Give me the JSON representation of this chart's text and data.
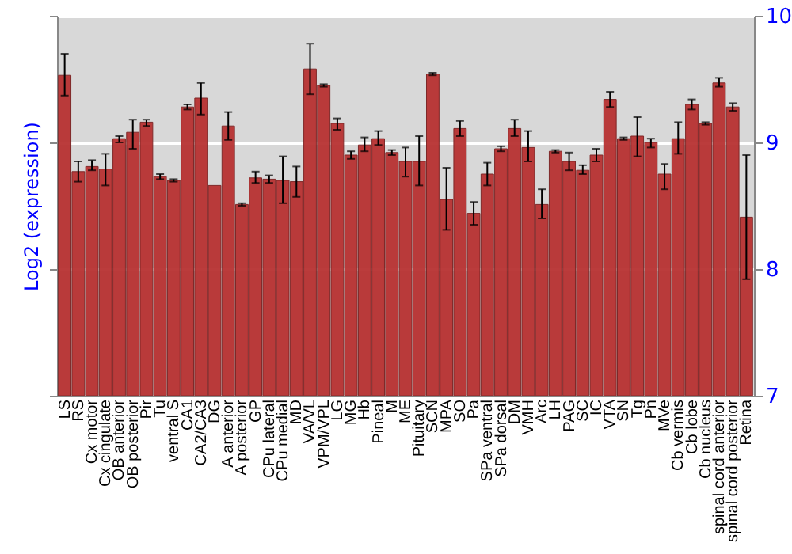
{
  "chart_data": {
    "type": "bar",
    "ylabel": "Log2 (expression)",
    "categories": [
      "LS",
      "RS",
      "Cx motor",
      "Cx cingulate",
      "OB anterior",
      "OB posterior",
      "Pir",
      "Tu",
      "ventral S",
      "CA1",
      "CA2/CA3",
      "DG",
      "A anterior",
      "A posterior",
      "GP",
      "CPu lateral",
      "CPu medial",
      "MD",
      "VA/VL",
      "VPM/VPL",
      "LG",
      "MG",
      "Hb",
      "Pineal",
      "M",
      "ME",
      "Pituitary",
      "SCN",
      "MPA",
      "SO",
      "Pa",
      "SPa ventral",
      "SPa dorsal",
      "DM",
      "VMH",
      "Arc",
      "LH",
      "PAG",
      "SC",
      "IC",
      "VTA",
      "SN",
      "Tg",
      "Pn",
      "MVe",
      "Cb vermis",
      "Cb lobe",
      "Cb nucleus",
      "spinal cord anterior",
      "spinal cord posterior",
      "Retina"
    ],
    "values": [
      9.53,
      8.77,
      8.81,
      8.79,
      9.03,
      9.08,
      9.16,
      8.73,
      8.7,
      9.28,
      9.35,
      8.66,
      9.13,
      8.51,
      8.72,
      8.71,
      8.7,
      8.69,
      9.58,
      9.45,
      9.15,
      8.9,
      8.98,
      9.03,
      8.92,
      8.85,
      8.85,
      9.54,
      8.55,
      9.11,
      8.44,
      8.75,
      8.95,
      9.11,
      8.96,
      8.51,
      8.93,
      8.85,
      8.78,
      8.9,
      9.34,
      9.03,
      9.05,
      9.0,
      8.75,
      9.03,
      9.3,
      9.15,
      9.47,
      9.28,
      8.41
    ],
    "errors": [
      [
        9.37,
        9.7
      ],
      [
        8.69,
        8.85
      ],
      [
        8.78,
        8.86
      ],
      [
        8.66,
        8.91
      ],
      [
        9.0,
        9.05
      ],
      [
        8.95,
        9.18
      ],
      [
        9.13,
        9.18
      ],
      0.02,
      0.01,
      [
        9.26,
        9.3
      ],
      [
        9.22,
        9.47
      ],
      null,
      [
        9.02,
        9.24
      ],
      0.01,
      [
        8.68,
        8.77
      ],
      [
        8.68,
        8.74
      ],
      [
        8.52,
        8.89
      ],
      [
        8.57,
        8.81
      ],
      [
        9.38,
        9.78
      ],
      0.01,
      [
        9.1,
        9.19
      ],
      [
        8.87,
        8.93
      ],
      [
        8.93,
        9.04
      ],
      [
        8.98,
        9.09
      ],
      [
        8.9,
        8.94
      ],
      [
        8.73,
        8.96
      ],
      [
        8.66,
        9.05
      ],
      0.01,
      [
        8.31,
        8.8
      ],
      [
        9.05,
        9.17
      ],
      [
        8.35,
        8.53
      ],
      [
        8.66,
        8.84
      ],
      [
        8.93,
        8.97
      ],
      [
        9.05,
        9.18
      ],
      [
        8.85,
        9.09
      ],
      [
        8.4,
        8.63
      ],
      0.01,
      [
        8.78,
        8.92
      ],
      [
        8.75,
        8.82
      ],
      [
        8.85,
        8.95
      ],
      [
        9.28,
        9.4
      ],
      0.01,
      [
        8.89,
        9.2
      ],
      [
        8.96,
        9.03
      ],
      [
        8.63,
        8.83
      ],
      [
        8.91,
        9.16
      ],
      [
        9.26,
        9.34
      ],
      0.01,
      [
        9.44,
        9.51
      ],
      [
        9.25,
        9.31
      ],
      [
        7.92,
        8.9
      ]
    ],
    "color": "#b83232",
    "ylim": [
      7,
      10
    ],
    "yticks": [
      7,
      8,
      9,
      10
    ],
    "grid": "y"
  }
}
